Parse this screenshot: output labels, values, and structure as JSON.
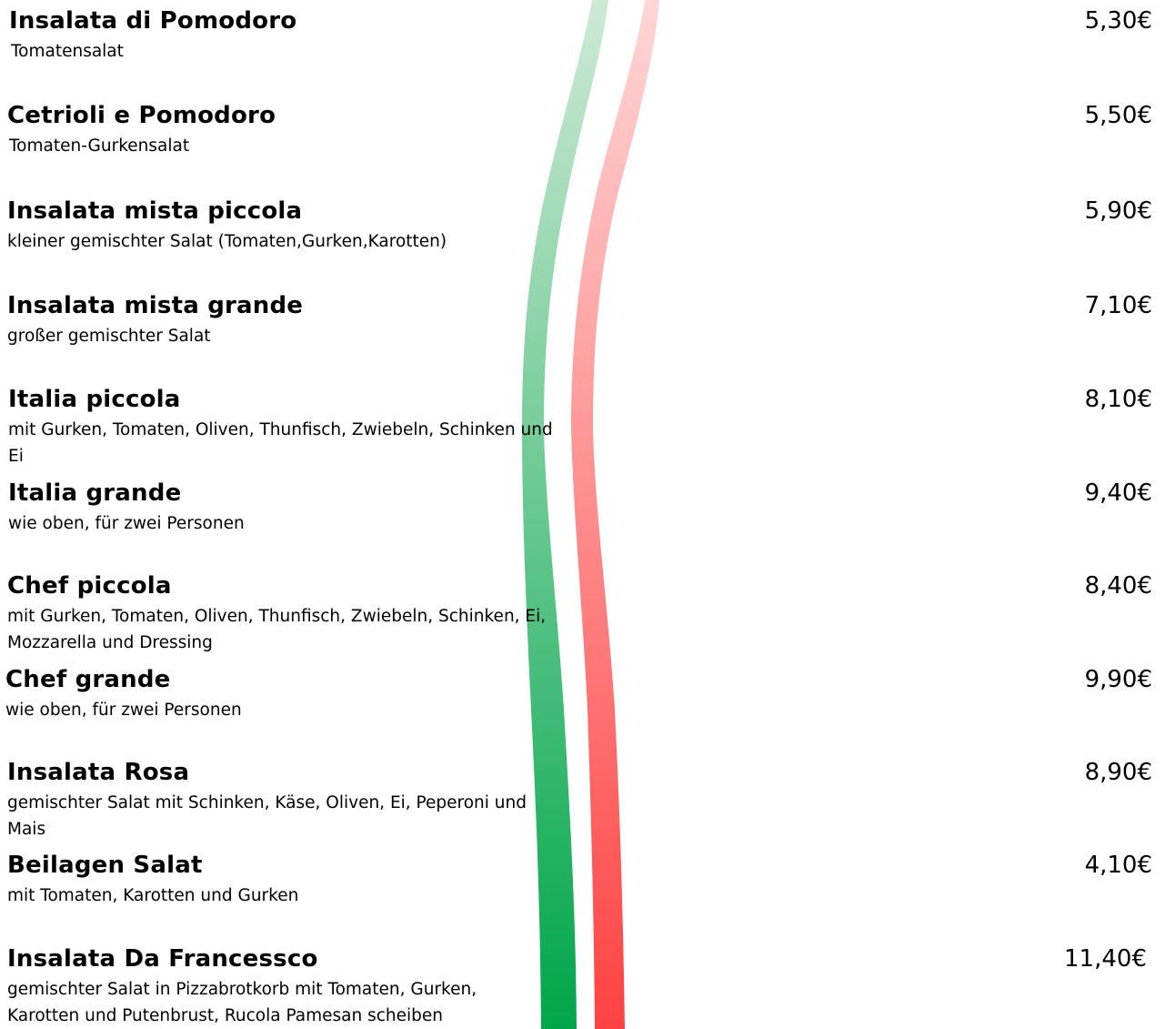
{
  "menu": {
    "items": [
      {
        "name": "Insalata di Pomodoro",
        "description": "Tomatensalat",
        "price": "5,30€"
      },
      {
        "name": "Cetrioli e Pomodoro",
        "description": "Tomaten-Gurkensalat",
        "price": "5,50€"
      },
      {
        "name": "Insalata mista piccola",
        "description": "kleiner gemischter Salat (Tomaten,Gurken,Karotten)",
        "price": "5,90€"
      },
      {
        "name": "Insalata mista grande",
        "description": "großer gemischter Salat",
        "price": "7,10€"
      },
      {
        "name": "Italia piccola",
        "description": "mit Gurken, Tomaten, Oliven, Thunfisch, Zwiebeln, Schinken und Ei",
        "price": "8,10€"
      },
      {
        "name": "Italia grande",
        "description": "wie oben, für zwei Personen",
        "price": "9,40€"
      },
      {
        "name": "Chef piccola",
        "description": "mit Gurken, Tomaten, Oliven, Thunfisch, Zwiebeln, Schinken, Ei, Mozzarella und Dressing",
        "price": "8,40€"
      },
      {
        "name": "Chef grande",
        "description": "wie oben, für zwei Personen",
        "price": "9,90€"
      },
      {
        "name": "Insalata Rosa",
        "description": "gemischter Salat mit Schinken, Käse, Oliven, Ei, Peperoni und Mais",
        "price": "8,90€"
      },
      {
        "name": "Beilagen Salat",
        "description": "mit Tomaten, Karotten und Gurken",
        "price": "4,10€"
      },
      {
        "name": "Insalata Da Francessco",
        "description": "gemischter Salat in Pizzabrotkorb mit Tomaten, Gurken, Karotten und Putenbrust, Rucola Pamesan scheiben",
        "price": "11,40€"
      }
    ]
  },
  "decoration": {
    "green_stripe_top": "#cde9d5",
    "green_stripe_bottom": "#00a64a",
    "red_stripe_top": "#ffd6d6",
    "red_stripe_bottom": "#ff4242"
  }
}
